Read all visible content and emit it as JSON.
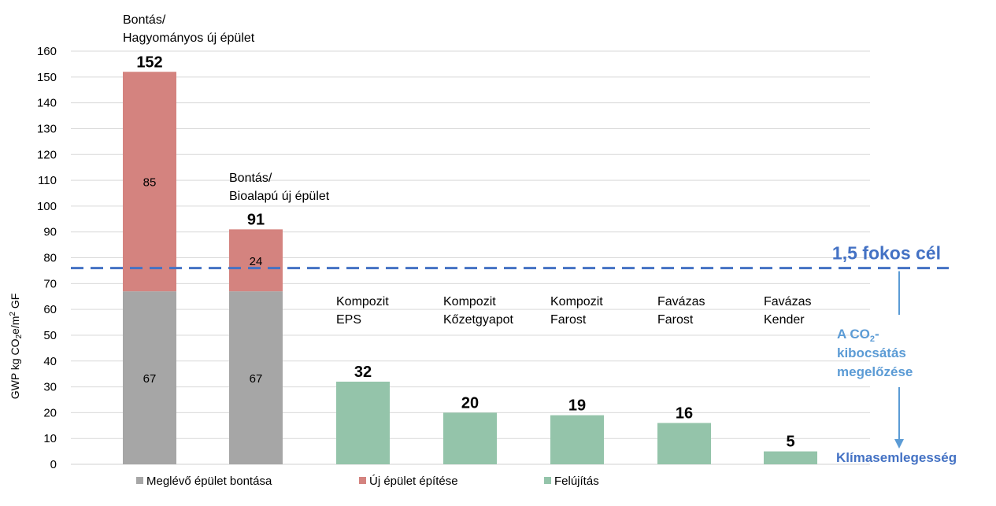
{
  "chart_data": {
    "type": "bar",
    "stacked": true,
    "ylabel_parts": [
      "GWP kg CO",
      "2",
      "e/m",
      "2",
      " GF"
    ],
    "ylim": [
      0,
      160
    ],
    "yticks": [
      0,
      10,
      20,
      30,
      40,
      50,
      60,
      70,
      80,
      90,
      100,
      110,
      120,
      130,
      140,
      150,
      160
    ],
    "grid": true,
    "categories": [
      [
        "Bontás/",
        "Hagyományos új épület"
      ],
      [
        "Bontás/",
        "Bioalapú új épület"
      ],
      [
        "Kompozit",
        "EPS"
      ],
      [
        "Kompozit",
        "Kőzetgyapot"
      ],
      [
        "Kompozit",
        "Farost"
      ],
      [
        "Favázas",
        "Farost"
      ],
      [
        "Favázas",
        "Kender"
      ]
    ],
    "series": [
      {
        "name": "Meglévő épület bontása",
        "color": "#a6a6a6",
        "values": [
          67,
          67,
          0,
          0,
          0,
          0,
          0
        ]
      },
      {
        "name": "Új épület építése",
        "color": "#d4837f",
        "values": [
          85,
          24,
          0,
          0,
          0,
          0,
          0
        ]
      },
      {
        "name": "Felújítás",
        "color": "#94c4aa",
        "values": [
          0,
          0,
          32,
          20,
          19,
          16,
          5
        ]
      }
    ],
    "segment_labels": [
      {
        "bar": 0,
        "series": 0,
        "text": "67"
      },
      {
        "bar": 0,
        "series": 1,
        "text": "85"
      },
      {
        "bar": 1,
        "series": 0,
        "text": "67"
      },
      {
        "bar": 1,
        "series": 1,
        "text": "24"
      }
    ],
    "totals": [
      "152",
      "91",
      "32",
      "20",
      "19",
      "16",
      "5"
    ],
    "reference_line": {
      "value": 76,
      "label": "1,5 fokos cél",
      "color": "#4472c4"
    },
    "annotation": {
      "lines": [
        [
          "A CO",
          "2",
          "-"
        ],
        [
          "kibocsátás"
        ],
        [
          "megelőzése"
        ]
      ],
      "color": "#5b9bd5"
    },
    "bottom_label": {
      "text": "Klímasemlegesség",
      "color": "#4472c4"
    },
    "legend_position": "bottom"
  }
}
